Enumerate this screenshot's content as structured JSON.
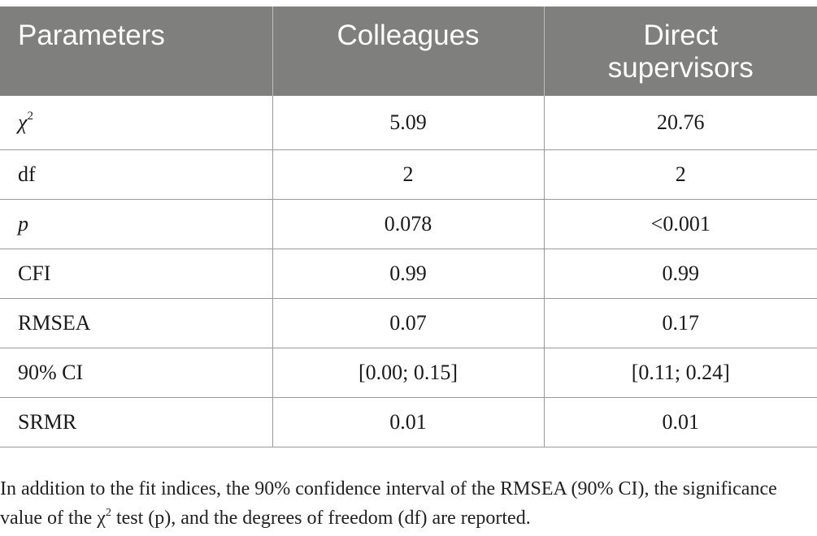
{
  "table": {
    "headers": [
      "Parameters",
      "Colleagues",
      "Direct\nsupervisors"
    ],
    "header_lines": {
      "col1": "Parameters",
      "col2": "Colleagues",
      "col3_line1": "Direct",
      "col3_line2": "supervisors"
    },
    "rows": [
      {
        "param_base": "χ",
        "param_sup": "2",
        "colleagues": "5.09",
        "supervisors": "20.76"
      },
      {
        "param": "df",
        "colleagues": "2",
        "supervisors": "2"
      },
      {
        "param": "p",
        "colleagues": "0.078",
        "supervisors": "<0.001"
      },
      {
        "param": "CFI",
        "colleagues": "0.99",
        "supervisors": "0.99"
      },
      {
        "param": "RMSEA",
        "colleagues": "0.07",
        "supervisors": "0.17"
      },
      {
        "param": "90% CI",
        "colleagues": "[0.00; 0.15]",
        "supervisors": "[0.11; 0.24]"
      },
      {
        "param": "SRMR",
        "colleagues": "0.01",
        "supervisors": "0.01"
      }
    ]
  },
  "footnote": {
    "part1": "In addition to the fit indices, the 90% confidence interval of the RMSEA (90% CI), the significance value of the χ",
    "sup": "2",
    "part2": " test (p), and the degrees of freedom (df) are reported."
  },
  "colors": {
    "header_bg": "#7f7f7d",
    "header_text": "#ffffff",
    "rule": "#9a9a9a"
  }
}
